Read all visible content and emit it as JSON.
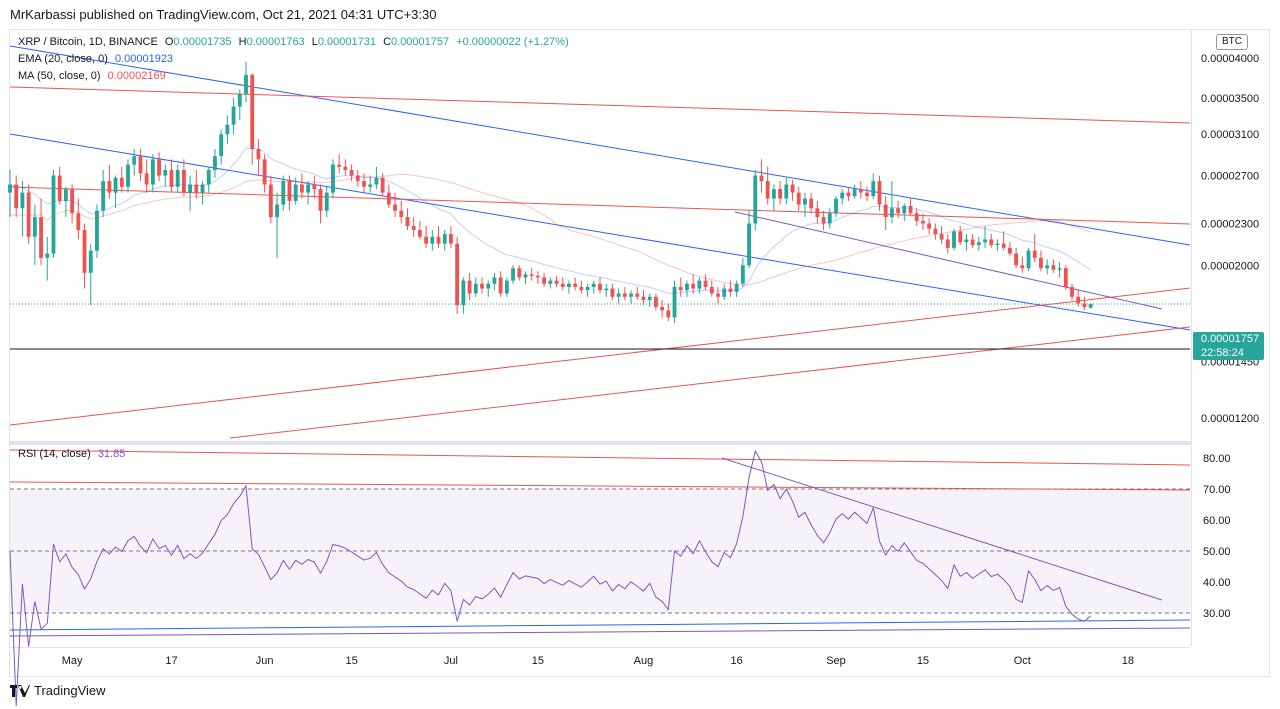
{
  "header": {
    "published": "MrKarbassi published on TradingView.com, Oct 21, 2021 04:31 UTC+3:30"
  },
  "legend": {
    "symbol": "XRP / Bitcoin, 1D, BINANCE",
    "ohlc": {
      "o_label": "O",
      "o": "0.00001735",
      "h_label": "H",
      "h": "0.00001763",
      "l_label": "L",
      "l": "0.00001731",
      "c_label": "C",
      "c": "0.00001757",
      "change": "+0.00000022 (+1.27%)"
    },
    "ema_label": "EMA (20, close, 0)",
    "ema_value": "0.00001923",
    "ma_label": "MA (50, close, 0)",
    "ma_value": "0.00002169",
    "rsi_label": "RSI (14, close)",
    "rsi_value": "31.85"
  },
  "currency_badge": "BTC",
  "last_price": {
    "value": "0.00001757",
    "countdown": "22:58:24"
  },
  "footer": {
    "brand": "TradingView"
  },
  "colors": {
    "up": "#26a69a",
    "down": "#ef5350",
    "ema": "#2962ff",
    "ma": "#ef5350",
    "rsi": "#7e57c2",
    "trend_blue": "#2962ff",
    "trend_red": "#ef5350"
  },
  "chart_data": {
    "type": "candlestick",
    "price_axis": {
      "scale": "log",
      "ticks": [
        "0.00004000",
        "0.00003500",
        "0.00003100",
        "0.00002700",
        "0.00002300",
        "0.00002000",
        "0.00001450",
        "0.00001200"
      ],
      "tick_values": [
        4e-05,
        3.5e-05,
        3.1e-05,
        2.7e-05,
        2.3e-05,
        2e-05,
        1.45e-05,
        1.2e-05
      ]
    },
    "x_axis": {
      "labels": [
        "May",
        "17",
        "Jun",
        "15",
        "Jul",
        "15",
        "Aug",
        "16",
        "Sep",
        "15",
        "Oct",
        "18"
      ],
      "label_dates": [
        "2021-05-01",
        "2021-05-17",
        "2021-06-01",
        "2021-06-15",
        "2021-07-01",
        "2021-07-15",
        "2021-08-01",
        "2021-08-16",
        "2021-09-01",
        "2021-09-15",
        "2021-10-01",
        "2021-10-18"
      ],
      "start_date": "2021-04-21",
      "end_date": "2021-10-28"
    },
    "ohlc": {
      "start_date": "2021-04-21",
      "values": [
        [
          2.55,
          2.75,
          2.35,
          2.62
        ],
        [
          2.62,
          2.7,
          2.35,
          2.42
        ],
        [
          2.42,
          2.65,
          2.2,
          2.55
        ],
        [
          2.55,
          2.62,
          2.15,
          2.2
        ],
        [
          2.2,
          2.45,
          2.0,
          2.35
        ],
        [
          2.35,
          2.5,
          2.0,
          2.05
        ],
        [
          2.05,
          2.2,
          1.9,
          2.08
        ],
        [
          2.08,
          2.75,
          2.05,
          2.7
        ],
        [
          2.7,
          2.78,
          2.45,
          2.48
        ],
        [
          2.48,
          2.6,
          2.35,
          2.58
        ],
        [
          2.58,
          2.62,
          2.3,
          2.38
        ],
        [
          2.38,
          2.5,
          2.18,
          2.25
        ],
        [
          2.25,
          2.3,
          1.85,
          1.95
        ],
        [
          1.95,
          2.15,
          1.75,
          2.1
        ],
        [
          2.1,
          2.45,
          2.05,
          2.4
        ],
        [
          2.4,
          2.75,
          2.35,
          2.65
        ],
        [
          2.65,
          2.8,
          2.5,
          2.55
        ],
        [
          2.55,
          2.7,
          2.42,
          2.68
        ],
        [
          2.68,
          2.78,
          2.55,
          2.6
        ],
        [
          2.6,
          2.85,
          2.55,
          2.8
        ],
        [
          2.8,
          2.95,
          2.7,
          2.88
        ],
        [
          2.88,
          2.95,
          2.65,
          2.72
        ],
        [
          2.72,
          2.85,
          2.55,
          2.62
        ],
        [
          2.62,
          2.9,
          2.55,
          2.85
        ],
        [
          2.85,
          2.92,
          2.65,
          2.7
        ],
        [
          2.7,
          2.8,
          2.6,
          2.75
        ],
        [
          2.75,
          2.85,
          2.55,
          2.6
        ],
        [
          2.6,
          2.8,
          2.55,
          2.75
        ],
        [
          2.75,
          2.85,
          2.52,
          2.55
        ],
        [
          2.55,
          2.7,
          2.4,
          2.62
        ],
        [
          2.62,
          2.75,
          2.5,
          2.55
        ],
        [
          2.55,
          2.65,
          2.45,
          2.62
        ],
        [
          2.62,
          2.78,
          2.55,
          2.75
        ],
        [
          2.75,
          2.95,
          2.68,
          2.88
        ],
        [
          2.88,
          3.15,
          2.8,
          3.1
        ],
        [
          3.1,
          3.3,
          3.0,
          3.2
        ],
        [
          3.2,
          3.5,
          3.1,
          3.4
        ],
        [
          3.4,
          3.6,
          3.25,
          3.55
        ],
        [
          3.55,
          3.95,
          3.45,
          3.78
        ],
        [
          3.78,
          3.8,
          2.8,
          2.95
        ],
        [
          2.95,
          3.05,
          2.7,
          2.85
        ],
        [
          2.85,
          2.9,
          2.55,
          2.62
        ],
        [
          2.62,
          2.7,
          2.3,
          2.35
        ],
        [
          2.35,
          2.55,
          2.05,
          2.45
        ],
        [
          2.45,
          2.7,
          2.4,
          2.65
        ],
        [
          2.65,
          2.7,
          2.4,
          2.48
        ],
        [
          2.48,
          2.68,
          2.45,
          2.62
        ],
        [
          2.62,
          2.72,
          2.5,
          2.55
        ],
        [
          2.55,
          2.65,
          2.45,
          2.62
        ],
        [
          2.62,
          2.7,
          2.5,
          2.58
        ],
        [
          2.58,
          2.62,
          2.3,
          2.4
        ],
        [
          2.4,
          2.6,
          2.35,
          2.55
        ],
        [
          2.55,
          2.85,
          2.5,
          2.8
        ],
        [
          2.8,
          2.9,
          2.72,
          2.78
        ],
        [
          2.78,
          2.85,
          2.7,
          2.75
        ],
        [
          2.75,
          2.8,
          2.65,
          2.7
        ],
        [
          2.7,
          2.75,
          2.6,
          2.65
        ],
        [
          2.65,
          2.72,
          2.55,
          2.6
        ],
        [
          2.6,
          2.7,
          2.55,
          2.62
        ],
        [
          2.62,
          2.78,
          2.58,
          2.68
        ],
        [
          2.68,
          2.72,
          2.52,
          2.55
        ],
        [
          2.55,
          2.62,
          2.42,
          2.45
        ],
        [
          2.45,
          2.55,
          2.35,
          2.4
        ],
        [
          2.4,
          2.48,
          2.3,
          2.35
        ],
        [
          2.35,
          2.42,
          2.25,
          2.28
        ],
        [
          2.28,
          2.35,
          2.2,
          2.25
        ],
        [
          2.25,
          2.32,
          2.18,
          2.2
        ],
        [
          2.2,
          2.28,
          2.12,
          2.15
        ],
        [
          2.15,
          2.25,
          2.1,
          2.2
        ],
        [
          2.2,
          2.28,
          2.12,
          2.15
        ],
        [
          2.15,
          2.25,
          2.1,
          2.22
        ],
        [
          2.22,
          2.28,
          2.12,
          2.15
        ],
        [
          2.15,
          2.2,
          1.7,
          1.75
        ],
        [
          1.75,
          1.92,
          1.7,
          1.9
        ],
        [
          1.9,
          1.95,
          1.78,
          1.82
        ],
        [
          1.82,
          1.92,
          1.8,
          1.88
        ],
        [
          1.88,
          1.92,
          1.82,
          1.85
        ],
        [
          1.85,
          1.9,
          1.8,
          1.88
        ],
        [
          1.88,
          1.95,
          1.84,
          1.92
        ],
        [
          1.92,
          1.96,
          1.8,
          1.82
        ],
        [
          1.82,
          1.92,
          1.8,
          1.9
        ],
        [
          1.9,
          2.0,
          1.88,
          1.98
        ],
        [
          1.98,
          2.0,
          1.9,
          1.92
        ],
        [
          1.92,
          1.96,
          1.88,
          1.94
        ],
        [
          1.94,
          1.98,
          1.9,
          1.93
        ],
        [
          1.93,
          1.96,
          1.88,
          1.92
        ],
        [
          1.92,
          1.95,
          1.86,
          1.88
        ],
        [
          1.88,
          1.92,
          1.85,
          1.9
        ],
        [
          1.9,
          1.93,
          1.86,
          1.88
        ],
        [
          1.88,
          1.92,
          1.84,
          1.86
        ],
        [
          1.86,
          1.9,
          1.82,
          1.88
        ],
        [
          1.88,
          1.92,
          1.84,
          1.86
        ],
        [
          1.86,
          1.9,
          1.82,
          1.84
        ],
        [
          1.84,
          1.88,
          1.8,
          1.86
        ],
        [
          1.86,
          1.9,
          1.82,
          1.88
        ],
        [
          1.88,
          1.92,
          1.82,
          1.84
        ],
        [
          1.84,
          1.88,
          1.8,
          1.85
        ],
        [
          1.85,
          1.88,
          1.78,
          1.8
        ],
        [
          1.8,
          1.85,
          1.76,
          1.82
        ],
        [
          1.82,
          1.86,
          1.78,
          1.8
        ],
        [
          1.8,
          1.84,
          1.76,
          1.82
        ],
        [
          1.82,
          1.86,
          1.78,
          1.8
        ],
        [
          1.8,
          1.84,
          1.75,
          1.78
        ],
        [
          1.78,
          1.82,
          1.74,
          1.8
        ],
        [
          1.8,
          1.82,
          1.72,
          1.74
        ],
        [
          1.74,
          1.78,
          1.68,
          1.72
        ],
        [
          1.72,
          1.76,
          1.66,
          1.68
        ],
        [
          1.68,
          1.9,
          1.65,
          1.86
        ],
        [
          1.86,
          1.92,
          1.8,
          1.84
        ],
        [
          1.84,
          1.9,
          1.8,
          1.88
        ],
        [
          1.88,
          1.94,
          1.82,
          1.85
        ],
        [
          1.85,
          1.92,
          1.82,
          1.9
        ],
        [
          1.9,
          1.94,
          1.84,
          1.86
        ],
        [
          1.86,
          1.9,
          1.8,
          1.82
        ],
        [
          1.82,
          1.86,
          1.76,
          1.8
        ],
        [
          1.8,
          1.88,
          1.78,
          1.85
        ],
        [
          1.85,
          1.9,
          1.8,
          1.83
        ],
        [
          1.83,
          1.9,
          1.8,
          1.88
        ],
        [
          1.88,
          2.05,
          1.86,
          2.0
        ],
        [
          2.0,
          2.4,
          1.98,
          2.3
        ],
        [
          2.3,
          2.75,
          2.25,
          2.7
        ],
        [
          2.7,
          2.85,
          2.55,
          2.65
        ],
        [
          2.65,
          2.78,
          2.45,
          2.5
        ],
        [
          2.5,
          2.62,
          2.4,
          2.58
        ],
        [
          2.58,
          2.65,
          2.45,
          2.5
        ],
        [
          2.5,
          2.68,
          2.45,
          2.62
        ],
        [
          2.62,
          2.66,
          2.48,
          2.55
        ],
        [
          2.55,
          2.6,
          2.4,
          2.45
        ],
        [
          2.45,
          2.55,
          2.35,
          2.5
        ],
        [
          2.5,
          2.55,
          2.38,
          2.42
        ],
        [
          2.42,
          2.48,
          2.3,
          2.35
        ],
        [
          2.35,
          2.4,
          2.25,
          2.3
        ],
        [
          2.3,
          2.42,
          2.26,
          2.38
        ],
        [
          2.38,
          2.52,
          2.35,
          2.5
        ],
        [
          2.5,
          2.58,
          2.45,
          2.55
        ],
        [
          2.55,
          2.6,
          2.48,
          2.52
        ],
        [
          2.52,
          2.62,
          2.5,
          2.58
        ],
        [
          2.58,
          2.65,
          2.5,
          2.55
        ],
        [
          2.55,
          2.6,
          2.48,
          2.52
        ],
        [
          2.52,
          2.72,
          2.5,
          2.65
        ],
        [
          2.65,
          2.7,
          2.4,
          2.45
        ],
        [
          2.45,
          2.52,
          2.25,
          2.35
        ],
        [
          2.35,
          2.65,
          2.3,
          2.42
        ],
        [
          2.42,
          2.48,
          2.34,
          2.38
        ],
        [
          2.38,
          2.46,
          2.32,
          2.44
        ],
        [
          2.44,
          2.5,
          2.36,
          2.38
        ],
        [
          2.38,
          2.42,
          2.28,
          2.32
        ],
        [
          2.32,
          2.38,
          2.25,
          2.3
        ],
        [
          2.3,
          2.34,
          2.22,
          2.26
        ],
        [
          2.26,
          2.3,
          2.18,
          2.22
        ],
        [
          2.22,
          2.28,
          2.15,
          2.18
        ],
        [
          2.18,
          2.22,
          2.08,
          2.12
        ],
        [
          2.12,
          2.26,
          2.1,
          2.24
        ],
        [
          2.24,
          2.28,
          2.14,
          2.16
        ],
        [
          2.16,
          2.22,
          2.1,
          2.18
        ],
        [
          2.18,
          2.22,
          2.12,
          2.14
        ],
        [
          2.14,
          2.2,
          2.1,
          2.16
        ],
        [
          2.16,
          2.28,
          2.12,
          2.18
        ],
        [
          2.18,
          2.22,
          2.12,
          2.14
        ],
        [
          2.14,
          2.18,
          2.1,
          2.15
        ],
        [
          2.15,
          2.24,
          2.1,
          2.12
        ],
        [
          2.12,
          2.16,
          2.06,
          2.08
        ],
        [
          2.08,
          2.12,
          1.98,
          2.0
        ],
        [
          2.0,
          2.06,
          1.95,
          1.98
        ],
        [
          1.98,
          2.12,
          1.96,
          2.1
        ],
        [
          2.1,
          2.22,
          2.02,
          2.05
        ],
        [
          2.05,
          2.1,
          1.96,
          1.98
        ],
        [
          1.98,
          2.04,
          1.94,
          2.0
        ],
        [
          2.0,
          2.04,
          1.95,
          1.97
        ],
        [
          1.97,
          2.02,
          1.92,
          1.98
        ],
        [
          1.98,
          2.0,
          1.84,
          1.86
        ],
        [
          1.86,
          1.88,
          1.78,
          1.8
        ],
        [
          1.8,
          1.84,
          1.74,
          1.76
        ],
        [
          1.76,
          1.8,
          1.72,
          1.74
        ],
        [
          1.735,
          1.763,
          1.731,
          1.757
        ]
      ],
      "unit_multiplier": 1e-05
    },
    "ema20": {
      "name": "EMA (20, close, 0)",
      "last": "0.00001923"
    },
    "ma50": {
      "name": "MA (50, close, 0)",
      "last": "0.00002169"
    },
    "rsi": {
      "name": "RSI (14, close)",
      "last": 31.85,
      "ticks": [
        80,
        70,
        60,
        50,
        40,
        30
      ],
      "tick_labels": [
        "80.00",
        "70.00",
        "60.00",
        "50.00",
        "40.00",
        "30.00"
      ],
      "bands": {
        "upper": 70,
        "middle": 50,
        "lower": 30
      },
      "range": [
        22,
        85
      ]
    }
  }
}
